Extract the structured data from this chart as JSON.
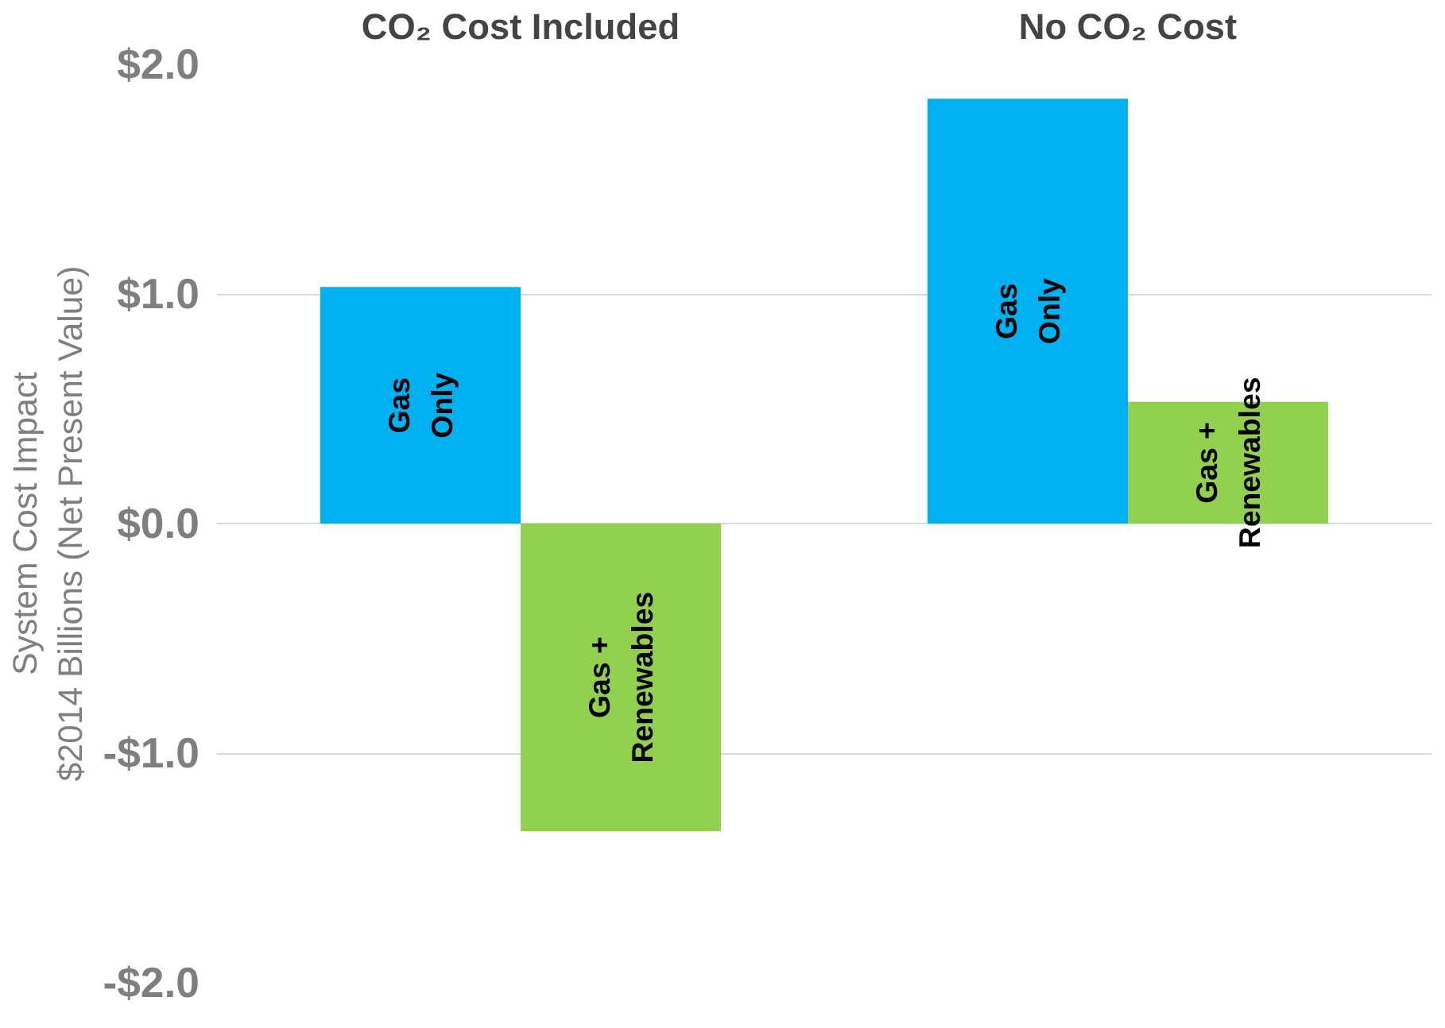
{
  "chart_data": {
    "type": "bar",
    "ylabel": "System Cost Impact\n$2014 Billions (Net Present Value)",
    "categories": [
      "CO₂ Cost Included",
      "No CO₂ Cost"
    ],
    "series": [
      {
        "name": "Gas\nOnly",
        "color": "#00b0f0",
        "values": [
          1.03,
          1.85
        ]
      },
      {
        "name": "Gas +\nRenewables",
        "color": "#92d050",
        "values": [
          -1.34,
          0.53
        ]
      }
    ],
    "ylim": [
      -2,
      2
    ],
    "yticks": [
      {
        "value": -2,
        "label": "-$2.0"
      },
      {
        "value": -1,
        "label": "-$1.0"
      },
      {
        "value": 0,
        "label": "$0.0"
      },
      {
        "value": 1,
        "label": "$1.0"
      },
      {
        "value": 2,
        "label": "$2.0"
      }
    ],
    "grid": "y",
    "legend": false
  }
}
